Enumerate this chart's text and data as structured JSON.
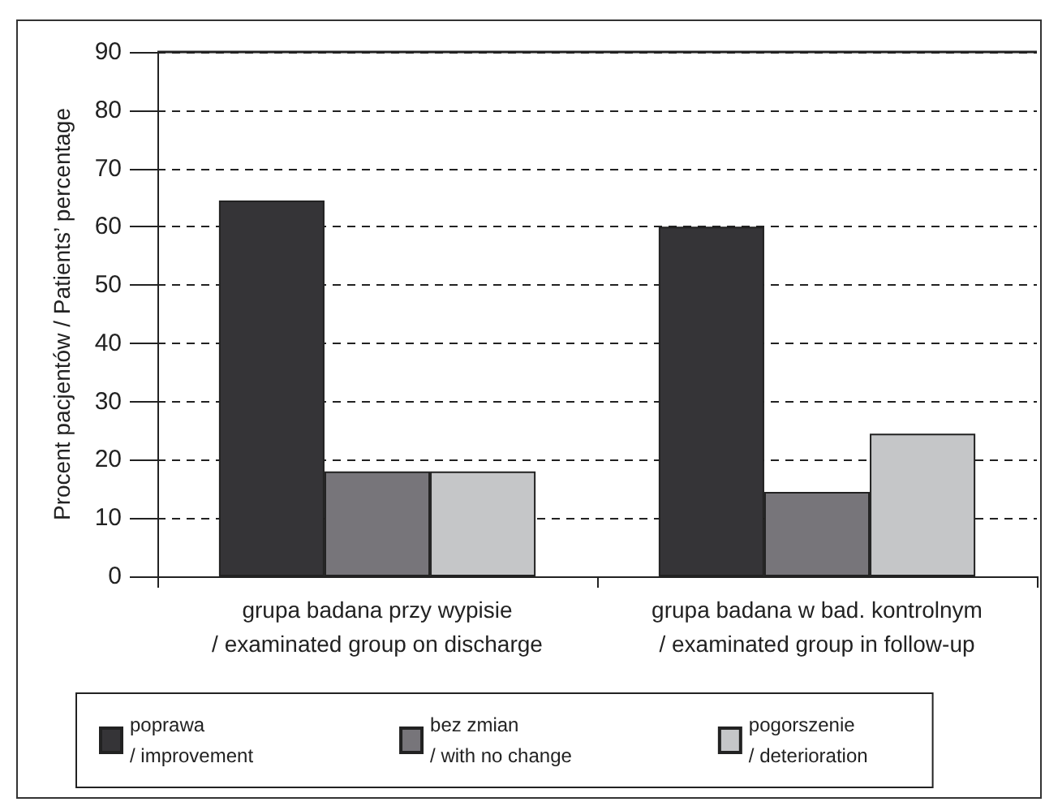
{
  "chart_data": {
    "type": "bar",
    "ylabel": "Procent pacjentów / Patients’ percentage",
    "categories": [
      "grupa badana przy wypisie\n/ examinated group on discharge",
      "grupa badana w bad. kontrolnym\n/ examinated group in follow-up"
    ],
    "series": [
      {
        "name": "poprawa\n/ improvement",
        "color": "#353437",
        "values": [
          64.5,
          60
        ]
      },
      {
        "name": "bez zmian\n/ with no change",
        "color": "#77757a",
        "values": [
          18,
          14.5
        ]
      },
      {
        "name": "pogorszenie\n/ deterioration",
        "color": "#c5c6c8",
        "values": [
          18,
          24.5
        ]
      }
    ],
    "ylim": [
      0,
      90
    ],
    "yticks": [
      0,
      10,
      20,
      30,
      40,
      50,
      60,
      70,
      80,
      90
    ],
    "grid": "y",
    "legend": "bottom"
  }
}
